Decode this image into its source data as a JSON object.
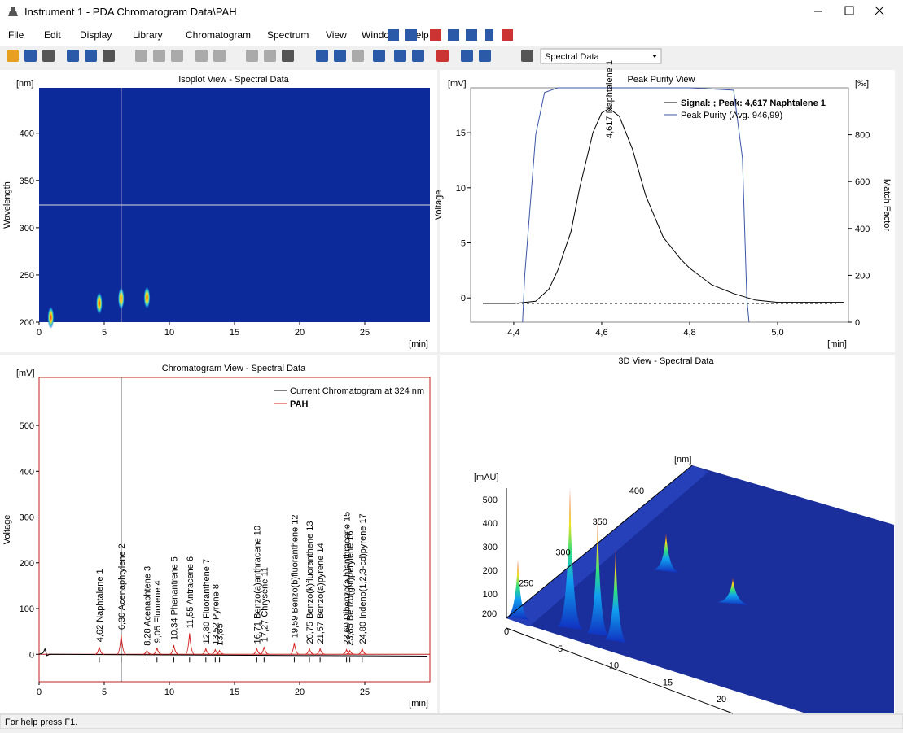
{
  "window": {
    "title": "Instrument 1 - PDA Chromatogram  Data\\PAH"
  },
  "menu": [
    "File",
    "Edit",
    "Display",
    "Library",
    "Chromatogram",
    "Spectrum",
    "View",
    "Window",
    "Help"
  ],
  "toolbar": {
    "dropdown": "Spectral Data"
  },
  "isoplot": {
    "title": "Isoplot View - Spectral Data",
    "x_unit": "[min]",
    "y_unit": "[nm]",
    "y_label": "Wavelength",
    "xlim": [
      0,
      30
    ],
    "xticks": [
      0,
      5,
      10,
      15,
      20,
      25
    ],
    "ylim": [
      200,
      448
    ],
    "yticks": [
      200,
      250,
      300,
      350,
      400
    ],
    "cursor_time": 6.3,
    "cursor_wavelength": 324,
    "spots": [
      {
        "time": 4.62,
        "wavelength": 220
      },
      {
        "time": 6.3,
        "wavelength": 225
      },
      {
        "time": 8.28,
        "wavelength": 226
      },
      {
        "time": 0.9,
        "wavelength": 205
      }
    ]
  },
  "peak_purity": {
    "title": "Peak Purity View",
    "x_unit": "[min]",
    "y_unit": "[mV]",
    "y2_unit": "[‰]",
    "y_label": "Voltage",
    "y2_label": "Match Factor",
    "xlim": [
      4.302,
      5.161
    ],
    "xticks": [
      {
        "value": 4.4,
        "label": "4,4"
      },
      {
        "value": 4.6,
        "label": "4,6"
      },
      {
        "value": 4.8,
        "label": "4,8"
      },
      {
        "value": 5.0,
        "label": "5,0"
      }
    ],
    "ylim": [
      -2.2,
      19.07
    ],
    "yticks": [
      0,
      5,
      10,
      15
    ],
    "y2lim": [
      0,
      1000
    ],
    "y2ticks": [
      0,
      200,
      400,
      600,
      800
    ],
    "baseline": -0.5,
    "peak_label": "4,617 Naphtalene  1",
    "peak_time": 4.617,
    "series": [
      {
        "name": "Signal: ; Peak: 4,617 Naphtalene  1",
        "color": "#000000",
        "x": [
          4.33,
          4.4,
          4.45,
          4.48,
          4.5,
          4.53,
          4.55,
          4.58,
          4.6,
          4.617,
          4.64,
          4.67,
          4.7,
          4.74,
          4.78,
          4.8,
          4.85,
          4.9,
          4.95,
          5.0,
          5.15
        ],
        "values": [
          -0.5,
          -0.5,
          -0.3,
          0.8,
          2.5,
          6,
          10,
          15,
          16.8,
          17.2,
          16.5,
          13.5,
          9.3,
          5.5,
          3.5,
          2.7,
          1.2,
          0.4,
          -0.2,
          -0.4,
          -0.4
        ]
      },
      {
        "name": "Peak Purity (Avg. 946,99)",
        "color": "#3a56a8",
        "axis": "y2",
        "x": [
          4.42,
          4.425,
          4.45,
          4.47,
          4.5,
          4.6,
          4.8,
          4.9,
          4.92,
          4.93,
          4.935
        ],
        "values": [
          0,
          200,
          800,
          980,
          1000,
          1000,
          1000,
          990,
          700,
          100,
          0
        ]
      }
    ]
  },
  "chromatogram": {
    "title": "Chromatogram View - Spectral Data",
    "x_unit": "[min]",
    "y_unit": "[mV]",
    "y_label": "Voltage",
    "xlim": [
      0,
      30
    ],
    "xticks": [
      0,
      5,
      10,
      15,
      20,
      25
    ],
    "ylim": [
      -60,
      605
    ],
    "yticks": [
      0,
      100,
      200,
      300,
      400,
      500
    ],
    "current": {
      "name": "Current Chromatogram at 324 nm",
      "color": "#000000",
      "x": [
        0,
        0.3,
        0.45,
        0.6,
        0.8,
        29.8
      ],
      "values": [
        0,
        3,
        12,
        -3,
        0,
        -4
      ]
    },
    "pah": {
      "name": "PAH",
      "color": "#d42020",
      "times": [
        4.62,
        6.3,
        8.28,
        9.05,
        10.34,
        11.55,
        12.8,
        13.52,
        13.85,
        16.71,
        17.27,
        19.59,
        20.75,
        21.57,
        23.6,
        23.85,
        24.8
      ],
      "heights": [
        16,
        43,
        8,
        14,
        20,
        46,
        12,
        10,
        8,
        12,
        16,
        25,
        12,
        12,
        10,
        8,
        12
      ],
      "labels": [
        "4,62 Naphtalene  1",
        "6,30 Acenaphtylene  2",
        "8,28 Acenaphtene  3",
        "9,05 Fluorene  4",
        "10,34 Phenantrene  5",
        "11,55 Antracene  6",
        "12,80 Fluoranthene  7",
        "13,52 Pyrene  8",
        "13,85",
        "16,71 Benzo(a)anthracene  10",
        "17,27 Chrysene  11",
        "19,59 Benzo(b)fluoranthene  12",
        "20,75 Benzo(k)fluoranthene  13",
        "21,57 Benzo(a)pyrene  14",
        "23,60 Dibenzo(a,h)anthracene  15",
        "23,85 Benzo(ghi)perylene  16",
        "24,80 Indeno(1,2,3-cd)pyrene  17"
      ]
    }
  },
  "view_3d": {
    "title": "3D View - Spectral Data",
    "z_unit": "[mAU]",
    "y_unit": "[nm]",
    "zticks": [
      100,
      200,
      300,
      400,
      500
    ],
    "yticks": [
      200,
      250,
      300,
      350,
      400
    ],
    "xticks": [
      0,
      5,
      10,
      15,
      20
    ]
  },
  "status_bar": {
    "text": "For help press F1."
  }
}
